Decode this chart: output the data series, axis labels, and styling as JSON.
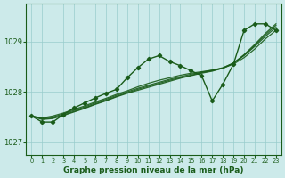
{
  "xlabel": "Graphe pression niveau de la mer (hPa)",
  "background_color": "#cceaea",
  "grid_color": "#99cccc",
  "line_color": "#1a5c1a",
  "marker_color": "#1a5c1a",
  "xlim": [
    -0.5,
    23.5
  ],
  "ylim": [
    1026.75,
    1029.75
  ],
  "yticks": [
    1027,
    1028,
    1029
  ],
  "xticks": [
    0,
    1,
    2,
    3,
    4,
    5,
    6,
    7,
    8,
    9,
    10,
    11,
    12,
    13,
    14,
    15,
    16,
    17,
    18,
    19,
    20,
    21,
    22,
    23
  ],
  "smooth_series": [
    [
      1027.52,
      1027.48,
      1027.52,
      1027.58,
      1027.65,
      1027.72,
      1027.8,
      1027.87,
      1027.95,
      1028.02,
      1028.1,
      1028.17,
      1028.23,
      1028.28,
      1028.33,
      1028.37,
      1028.4,
      1028.43,
      1028.47,
      1028.55,
      1028.68,
      1028.85,
      1029.05,
      1029.22
    ],
    [
      1027.52,
      1027.47,
      1027.5,
      1027.56,
      1027.63,
      1027.7,
      1027.78,
      1027.85,
      1027.93,
      1028.0,
      1028.07,
      1028.13,
      1028.19,
      1028.25,
      1028.3,
      1028.35,
      1028.39,
      1028.43,
      1028.48,
      1028.57,
      1028.72,
      1028.9,
      1029.1,
      1029.28
    ],
    [
      1027.52,
      1027.46,
      1027.48,
      1027.54,
      1027.61,
      1027.68,
      1027.76,
      1027.83,
      1027.91,
      1027.98,
      1028.05,
      1028.11,
      1028.17,
      1028.23,
      1028.28,
      1028.33,
      1028.38,
      1028.42,
      1028.47,
      1028.57,
      1028.73,
      1028.92,
      1029.13,
      1029.32
    ],
    [
      1027.52,
      1027.45,
      1027.47,
      1027.53,
      1027.6,
      1027.67,
      1027.75,
      1027.82,
      1027.9,
      1027.97,
      1028.03,
      1028.09,
      1028.15,
      1028.21,
      1028.27,
      1028.32,
      1028.37,
      1028.41,
      1028.47,
      1028.57,
      1028.74,
      1028.94,
      1029.16,
      1029.35
    ]
  ],
  "main_series": [
    1027.52,
    1027.4,
    1027.4,
    1027.55,
    1027.68,
    1027.78,
    1027.88,
    1027.97,
    1028.05,
    1028.28,
    1028.48,
    1028.65,
    1028.72,
    1028.6,
    1028.52,
    1028.42,
    1028.32,
    1027.82,
    1028.15,
    1028.55,
    1029.22,
    1029.35,
    1029.35,
    1029.22
  ]
}
